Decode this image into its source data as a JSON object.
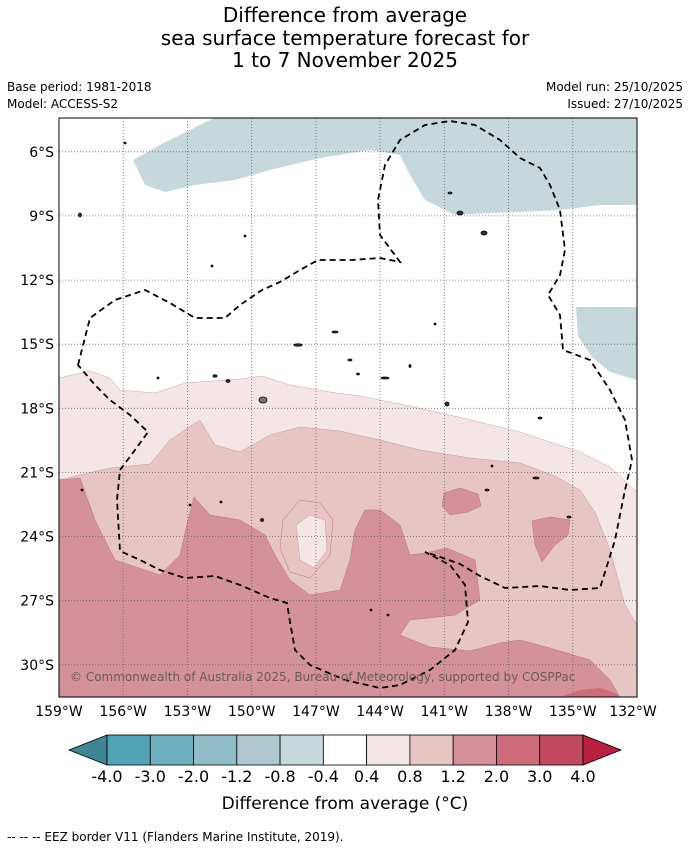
{
  "title": {
    "line1": "Difference from average",
    "line2": "sea surface temperature forecast for",
    "line3": "1 to 7 November 2025"
  },
  "meta": {
    "base_period": "Base period: 1981-2018",
    "model": "Model: ACCESS-S2",
    "model_run": "Model run: 25/10/2025",
    "issued": "Issued: 27/10/2025"
  },
  "map": {
    "lon_labels": [
      "159°W",
      "156°W",
      "153°W",
      "150°W",
      "147°W",
      "144°W",
      "141°W",
      "138°W",
      "135°W",
      "132°W"
    ],
    "lat_labels": [
      "6°S",
      "9°S",
      "12°S",
      "15°S",
      "18°S",
      "21°S",
      "24°S",
      "27°S",
      "30°S"
    ],
    "copyright": "© Commonwealth of Australia 2025, Bureau of Meteorology, supported by COSPPac",
    "lon_range": [
      -159,
      -132
    ],
    "lat_range": [
      -31.5,
      -4.5
    ]
  },
  "colorbar": {
    "colors": [
      "#3f8596",
      "#4fa3b4",
      "#6eb0bf",
      "#90bdc8",
      "#afc8cf",
      "#c7d8dd",
      "#ffffff",
      "#f4e6e6",
      "#e7c5c3",
      "#d4919a",
      "#cf6c7b",
      "#c24a5e",
      "#b5213f"
    ],
    "tick_labels": [
      "-4.0",
      "-3.0",
      "-2.0",
      "-1.2",
      "-0.8",
      "-0.4",
      "0.4",
      "0.8",
      "1.2",
      "2.0",
      "3.0",
      "4.0"
    ],
    "title": "Difference from average (°C)"
  },
  "footer": {
    "eez_note": "--  --  -- EEZ border V11 (Flanders Marine Institute, 2019)."
  }
}
